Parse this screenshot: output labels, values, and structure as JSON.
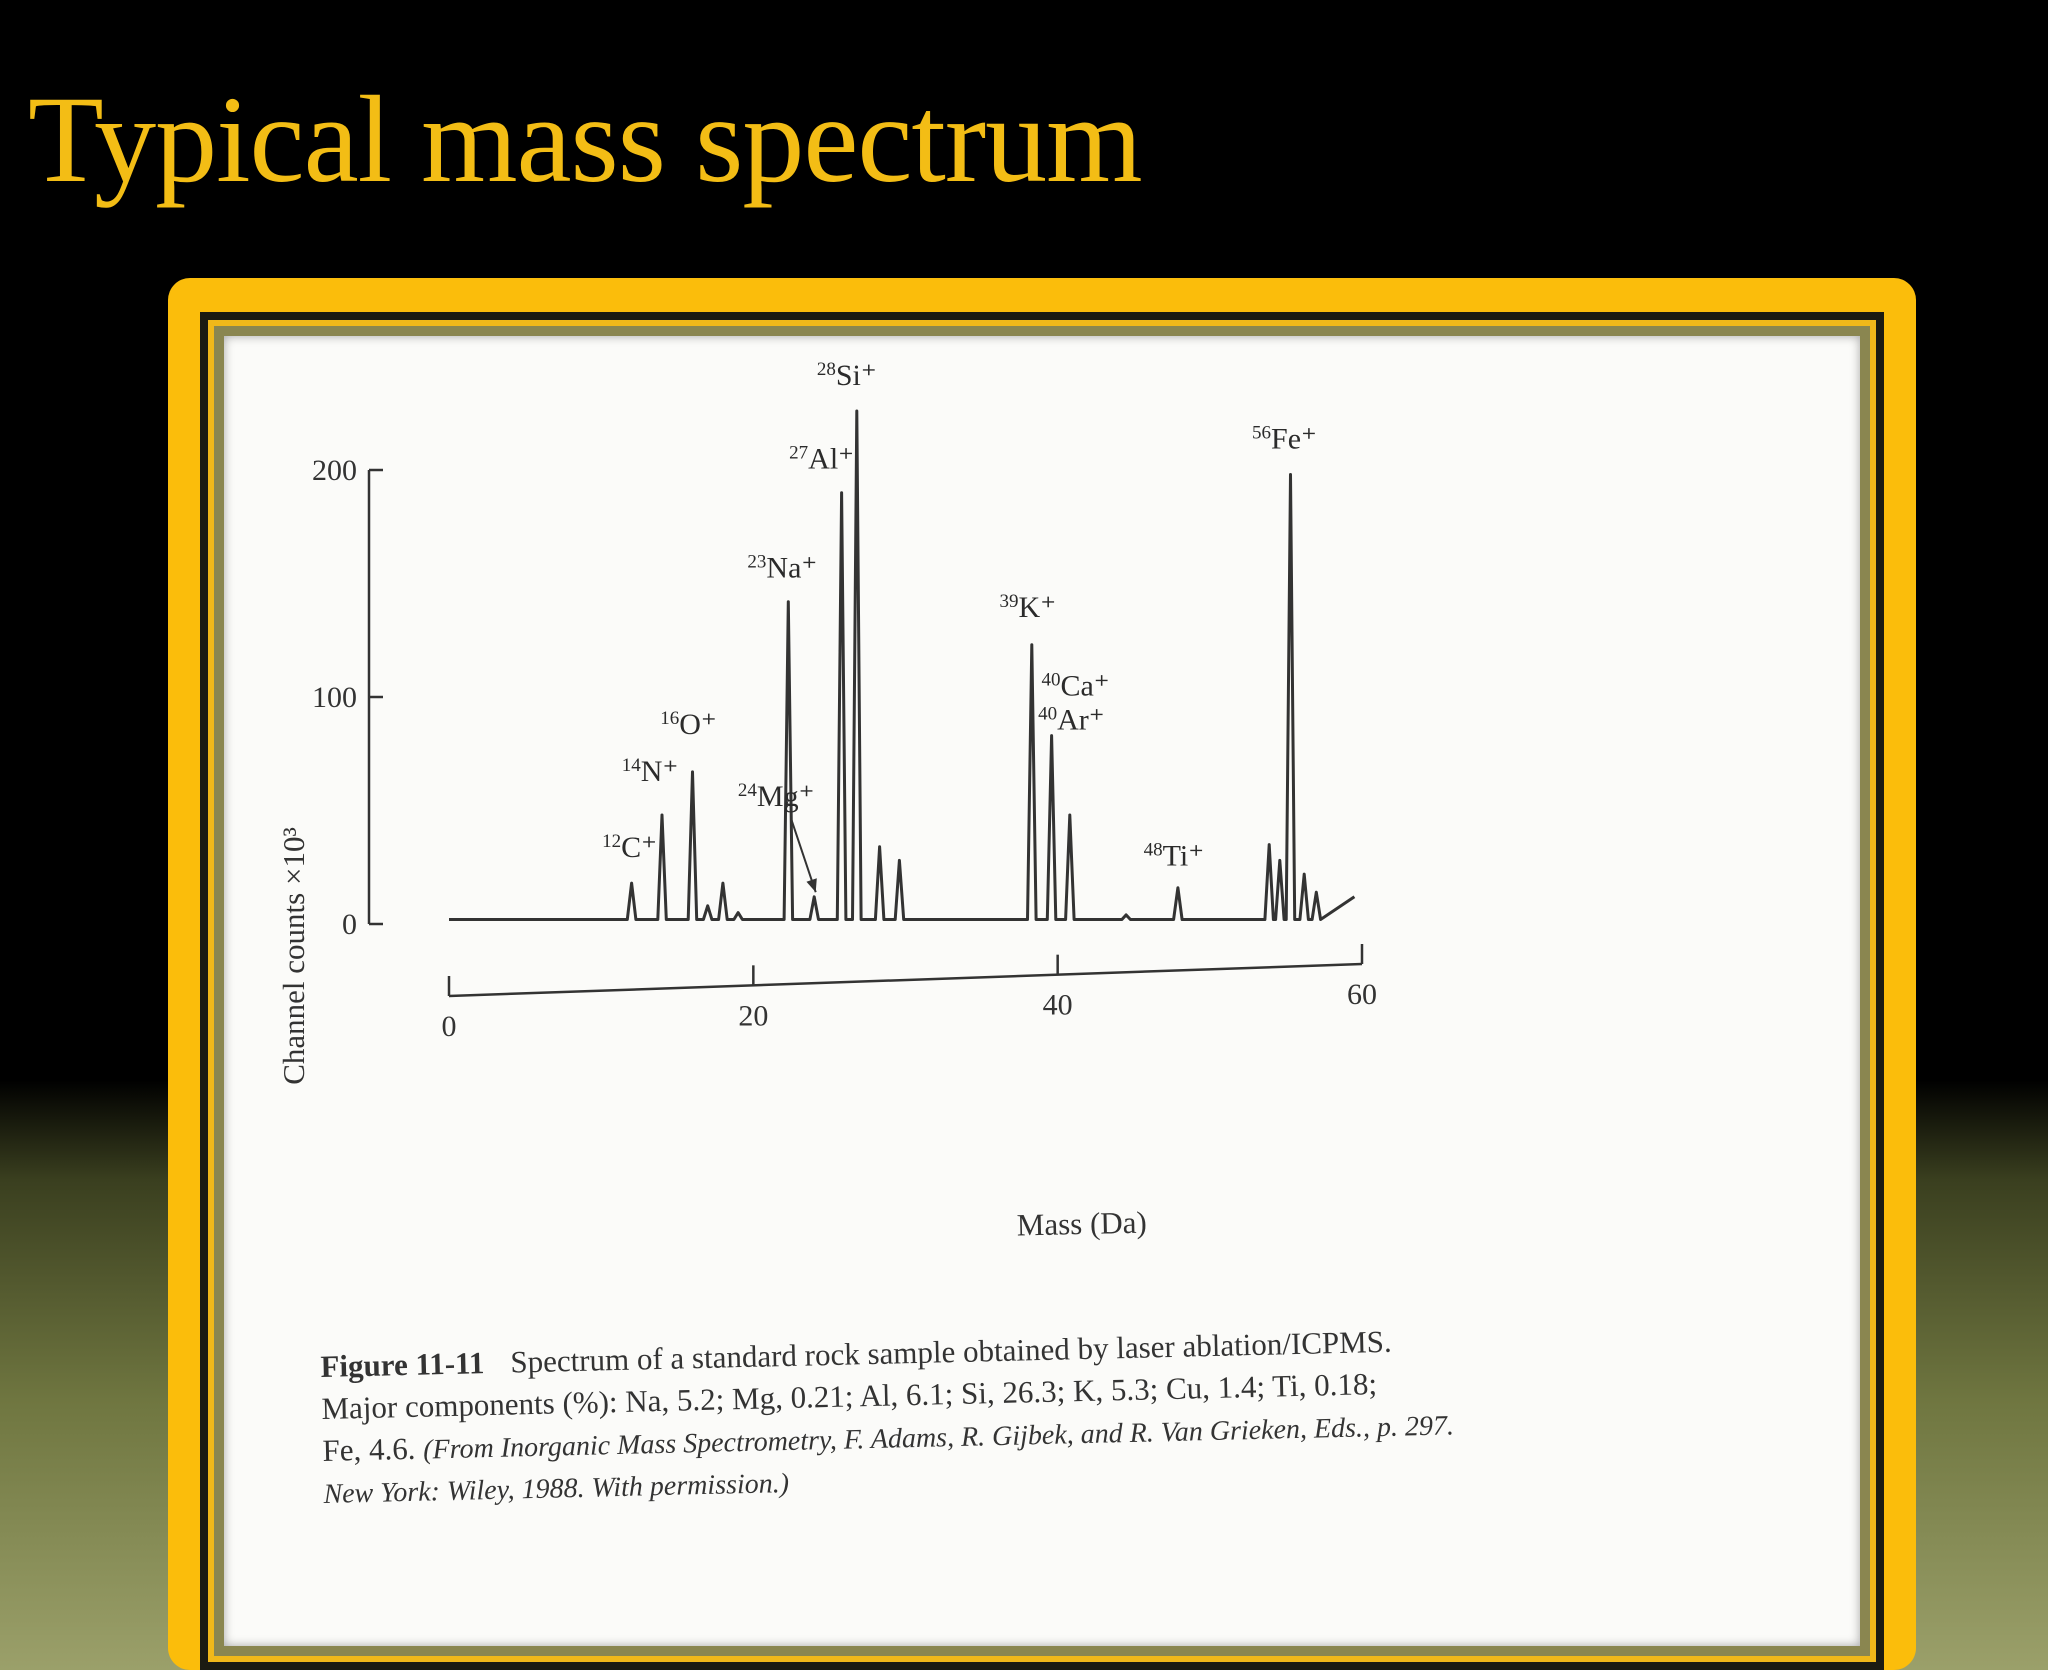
{
  "slide": {
    "title": "Typical mass spectrum",
    "title_color": "#f3bd15",
    "frame_color": "#fbbd0b"
  },
  "chart_data": {
    "type": "line",
    "xlabel": "Mass (Da)",
    "ylabel": "Channel counts ×10³",
    "xlim": [
      0,
      60
    ],
    "ylim": [
      0,
      200
    ],
    "x_ticks": [
      "0",
      "20",
      "40",
      "60"
    ],
    "y_ticks": [
      "0",
      "100",
      "200"
    ],
    "baseline": 2,
    "line_color": "#333333",
    "peaks": [
      {
        "mass": 12,
        "height": 18,
        "label": "C⁺",
        "isotope": "12"
      },
      {
        "mass": 14,
        "height": 48,
        "label": "N⁺",
        "isotope": "14"
      },
      {
        "mass": 16,
        "height": 67,
        "label": "O⁺",
        "isotope": "16"
      },
      {
        "mass": 17,
        "height": 8,
        "label": "",
        "isotope": ""
      },
      {
        "mass": 18,
        "height": 18,
        "label": "",
        "isotope": ""
      },
      {
        "mass": 19,
        "height": 5,
        "label": "",
        "isotope": ""
      },
      {
        "mass": 22.3,
        "height": 142,
        "label": "Na⁺",
        "isotope": "23"
      },
      {
        "mass": 24,
        "height": 12,
        "label": "Mg⁺",
        "isotope": "24"
      },
      {
        "mass": 25.8,
        "height": 190,
        "label": "Al⁺",
        "isotope": "27"
      },
      {
        "mass": 26.8,
        "height": 226,
        "label": "Si⁺",
        "isotope": "28"
      },
      {
        "mass": 28.3,
        "height": 34,
        "label": "",
        "isotope": ""
      },
      {
        "mass": 29.6,
        "height": 28,
        "label": "",
        "isotope": ""
      },
      {
        "mass": 38.3,
        "height": 123,
        "label": "K⁺",
        "isotope": "39"
      },
      {
        "mass": 39.6,
        "height": 83,
        "label": "Ca⁺",
        "isotope": "40"
      },
      {
        "mass": 40.8,
        "height": 48,
        "label": "",
        "isotope": ""
      },
      {
        "mass": 44.5,
        "height": 4,
        "label": "",
        "isotope": ""
      },
      {
        "mass": 47.9,
        "height": 16,
        "label": "Ti⁺",
        "isotope": "48"
      },
      {
        "mass": 53.9,
        "height": 35,
        "label": "",
        "isotope": ""
      },
      {
        "mass": 54.6,
        "height": 28,
        "label": "",
        "isotope": ""
      },
      {
        "mass": 55.3,
        "height": 198,
        "label": "Fe⁺",
        "isotope": "56"
      },
      {
        "mass": 56.2,
        "height": 22,
        "label": "",
        "isotope": ""
      },
      {
        "mass": 57,
        "height": 14,
        "label": "",
        "isotope": ""
      }
    ],
    "extra_labels": [
      {
        "isotope": "40",
        "label": "Ar⁺"
      }
    ]
  },
  "caption": {
    "figure_number": "Figure 11-11",
    "line1": "Spectrum of a standard rock sample obtained by laser ablation/ICPMS.",
    "line2": "Major components (%): Na, 5.2; Mg, 0.21; Al, 6.1; Si, 26.3; K, 5.3; Cu, 1.4; Ti, 0.18;",
    "line3_plain": "Fe, 4.6.",
    "line3_source": "(From Inorganic Mass Spectrometry, F. Adams, R. Gijbek, and R. Van Grieken, Eds., p. 297.",
    "line4_source": "New York: Wiley, 1988. With permission.)"
  }
}
